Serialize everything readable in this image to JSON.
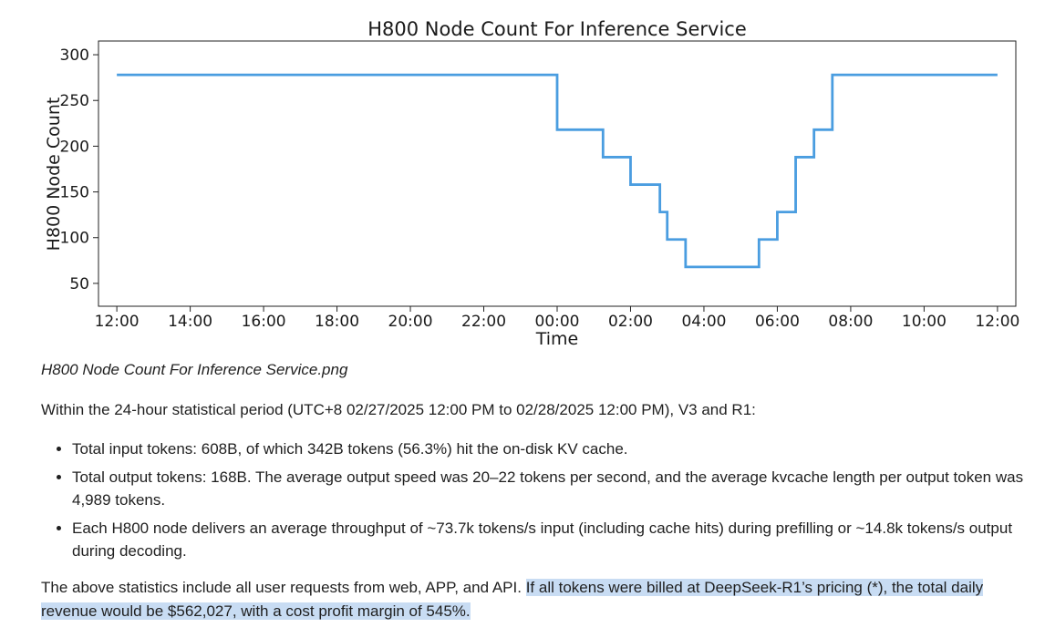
{
  "chart_data": {
    "type": "line",
    "title": "H800 Node Count For Inference Service",
    "xlabel": "Time",
    "ylabel": "H800 Node Count",
    "line_color": "#4a9de0",
    "step": "post",
    "xlim": [
      -0.5,
      24.5
    ],
    "ylim": [
      25,
      315
    ],
    "x_ticks": [
      0,
      2,
      4,
      6,
      8,
      10,
      12,
      14,
      16,
      18,
      20,
      22,
      24
    ],
    "x_tick_labels": [
      "12:00",
      "14:00",
      "16:00",
      "18:00",
      "20:00",
      "22:00",
      "00:00",
      "02:00",
      "04:00",
      "06:00",
      "08:00",
      "10:00",
      "12:00"
    ],
    "y_ticks": [
      50,
      100,
      150,
      200,
      250,
      300
    ],
    "y_tick_labels": [
      "50",
      "100",
      "150",
      "200",
      "250",
      "300"
    ],
    "grid": false,
    "series": [
      {
        "x": [
          0,
          12,
          13.25,
          14,
          14.8,
          15,
          15.5,
          17.5,
          18,
          18.5,
          19,
          19.5,
          20,
          24
        ],
        "y": [
          278,
          218,
          188,
          158,
          128,
          98,
          68,
          98,
          128,
          188,
          218,
          278,
          278,
          278
        ]
      }
    ]
  },
  "caption": "H800 Node Count For Inference Service.png",
  "intro": "Within the 24-hour statistical period (UTC+8 02/27/2025 12:00 PM to 02/28/2025 12:00 PM), V3 and R1:",
  "bullets": [
    "Total input tokens: 608B, of which 342B tokens (56.3%) hit the on-disk KV cache.",
    "Total output tokens: 168B. The average output speed was 20–22 tokens per second, and the average kvcache length per output token was 4,989 tokens.",
    "Each H800 node delivers an average throughput of ~73.7k tokens/s input (including cache hits) during prefilling or ~14.8k tokens/s output during decoding."
  ],
  "outro_plain": "The above statistics include all user requests from web, APP, and API. ",
  "outro_highlight": "If all tokens were billed at DeepSeek-R1’s pricing (*), the total daily revenue would be $562,027, with a cost profit margin of 545%.",
  "highlight_color": "#c8dcf3"
}
